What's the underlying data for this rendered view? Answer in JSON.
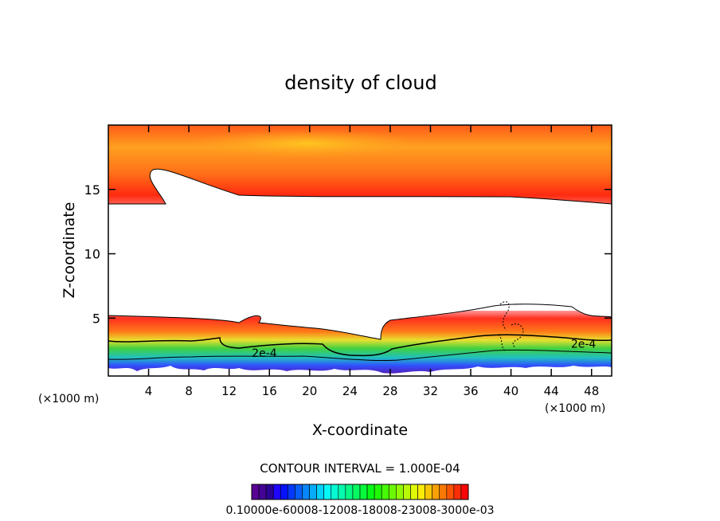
{
  "chart_data": {
    "type": "heatmap",
    "title": "density of cloud",
    "xlabel": "X-coordinate",
    "ylabel": "Z-coordinate",
    "x_unit": "(×1000 m)",
    "x_ticks": [
      4,
      8,
      12,
      16,
      20,
      24,
      28,
      32,
      36,
      40,
      44,
      48
    ],
    "y_ticks": [
      5,
      10,
      15
    ],
    "xlim": [
      0,
      50
    ],
    "ylim": [
      0.5,
      20
    ],
    "contour_interval_label": "CONTOUR INTERVAL = 1.000E-04",
    "contour_labels": [
      {
        "text": "2e-4",
        "x": 15.5,
        "z": 2.3
      },
      {
        "text": "2e-4",
        "x": 47.2,
        "z": 3.0
      }
    ],
    "colorbar_label": "0.10000e-60008-12008-18008-23008-3000e-03",
    "colorbar_min": 0.0001,
    "colorbar_max": 0.003,
    "colors": {
      "low": "#5a00a0",
      "mid": "#18d040",
      "high": "#ff2010",
      "top": "#ffc018"
    }
  }
}
